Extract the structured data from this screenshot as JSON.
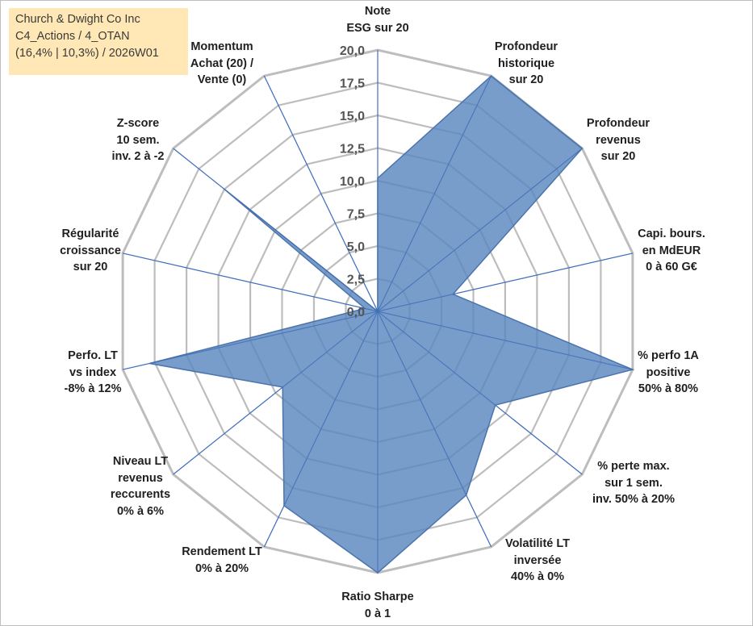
{
  "title_box": {
    "line1": "Church & Dwight Co Inc",
    "line2": "C4_Actions / 4_OTAN",
    "line3": "(16,4% | 10,3%) / 2026W01"
  },
  "chart_data": {
    "type": "radar",
    "rmin": 0,
    "rmax": 20,
    "ticks": [
      "0,0",
      "2,5",
      "5,0",
      "7,5",
      "10,0",
      "12,5",
      "15,0",
      "17,5",
      "20,0"
    ],
    "grid": true,
    "colors": {
      "fill": "#5b87bf",
      "fill_opacity": "0.82",
      "grid": "#bdbdbd",
      "spoke": "#4472c4"
    },
    "axes": [
      {
        "lines": [
          "Note",
          "ESG sur 20"
        ],
        "value": 10.2
      },
      {
        "lines": [
          "Profondeur",
          "historique",
          "sur 20"
        ],
        "value": 20.0
      },
      {
        "lines": [
          "Profondeur",
          "revenus",
          "sur 20"
        ],
        "value": 20.0
      },
      {
        "lines": [
          "Capi. bours.",
          "en MdEUR",
          "0 à 60 G€"
        ],
        "value": 5.9
      },
      {
        "lines": [
          "% perfo 1A",
          "positive",
          "50% à 80%"
        ],
        "value": 20.0
      },
      {
        "lines": [
          "% perte max.",
          "sur 1 sem.",
          "inv. 50% à 20%"
        ],
        "value": 11.5
      },
      {
        "lines": [
          "Volatilité LT",
          "inversée",
          "40% à 0%"
        ],
        "value": 15.6
      },
      {
        "lines": [
          "Ratio Sharpe",
          "0 à 1"
        ],
        "value": 20.0
      },
      {
        "lines": [
          "Rendement LT",
          "0% à 20%"
        ],
        "value": 16.5
      },
      {
        "lines": [
          "Niveau LT",
          "revenus",
          "reccurents",
          "0% à 6%"
        ],
        "value": 9.3
      },
      {
        "lines": [
          "Perfo. LT",
          "vs index",
          "-8% à 12%"
        ],
        "value": 17.9
      },
      {
        "lines": [
          "Régularité",
          "croissance",
          "sur 20"
        ],
        "value": 1.0
      },
      {
        "lines": [
          "Z-score",
          "10 sem.",
          "inv. 2 à -2"
        ],
        "value": 15.0
      },
      {
        "lines": [
          "Momentum",
          "Achat (20) /",
          "Vente (0)"
        ],
        "value": 0.0
      }
    ]
  }
}
